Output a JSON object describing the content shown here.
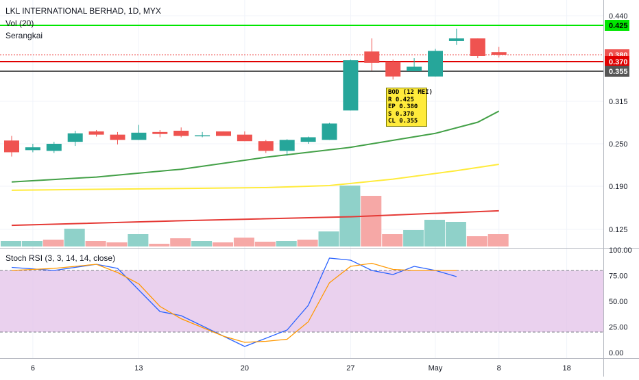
{
  "header": {
    "title": "LKL INTERNATIONAL BERHAD, 1D, MYX",
    "vol_label": "Vol (20)",
    "series_label": "Serangkai",
    "stoch_label": "Stoch RSI (3, 3, 14, 14, close)"
  },
  "annotation": {
    "lines": [
      "BOD (12 MEI)",
      "R 0.425",
      "EP 0.380",
      "S 0.370",
      "CL 0.355"
    ]
  },
  "colors": {
    "up": "#26a69a",
    "down": "#ef5350",
    "up_vol": "#8fd1c9",
    "down_vol": "#f6a8a6",
    "ma_green": "#43a047",
    "ma_yellow": "#ffeb3b",
    "ma_red": "#e53935",
    "k_line": "#2962ff",
    "d_line": "#ff9800",
    "band": "#e1bee7"
  },
  "chart_data": [
    {
      "type": "candlestick",
      "title": "LKL INTERNATIONAL BERHAD, 1D, MYX",
      "y_ticks": [
        "0.440",
        "0.315",
        "0.250",
        "0.190",
        "0.125"
      ],
      "x_ticks": [
        "6",
        "13",
        "20",
        "27",
        "May",
        "8",
        "18"
      ],
      "candles": [
        {
          "o": 0.255,
          "h": 0.262,
          "l": 0.232,
          "c": 0.238
        },
        {
          "o": 0.241,
          "h": 0.25,
          "l": 0.238,
          "c": 0.245
        },
        {
          "o": 0.24,
          "h": 0.253,
          "l": 0.237,
          "c": 0.25
        },
        {
          "o": 0.253,
          "h": 0.27,
          "l": 0.247,
          "c": 0.266
        },
        {
          "o": 0.269,
          "h": 0.271,
          "l": 0.261,
          "c": 0.264
        },
        {
          "o": 0.264,
          "h": 0.268,
          "l": 0.249,
          "c": 0.256
        },
        {
          "o": 0.256,
          "h": 0.279,
          "l": 0.256,
          "c": 0.267
        },
        {
          "o": 0.268,
          "h": 0.271,
          "l": 0.26,
          "c": 0.265
        },
        {
          "o": 0.27,
          "h": 0.275,
          "l": 0.26,
          "c": 0.262
        },
        {
          "o": 0.263,
          "h": 0.268,
          "l": 0.26,
          "c": 0.263
        },
        {
          "o": 0.269,
          "h": 0.269,
          "l": 0.262,
          "c": 0.262
        },
        {
          "o": 0.264,
          "h": 0.269,
          "l": 0.254,
          "c": 0.254
        },
        {
          "o": 0.254,
          "h": 0.256,
          "l": 0.237,
          "c": 0.24
        },
        {
          "o": 0.24,
          "h": 0.257,
          "l": 0.233,
          "c": 0.256
        },
        {
          "o": 0.253,
          "h": 0.261,
          "l": 0.25,
          "c": 0.26
        },
        {
          "o": 0.256,
          "h": 0.282,
          "l": 0.256,
          "c": 0.281
        },
        {
          "o": 0.301,
          "h": 0.373,
          "l": 0.301,
          "c": 0.372
        },
        {
          "o": 0.385,
          "h": 0.405,
          "l": 0.356,
          "c": 0.368
        },
        {
          "o": 0.37,
          "h": 0.373,
          "l": 0.344,
          "c": 0.348
        },
        {
          "o": 0.355,
          "h": 0.375,
          "l": 0.355,
          "c": 0.362
        },
        {
          "o": 0.348,
          "h": 0.389,
          "l": 0.348,
          "c": 0.386
        },
        {
          "o": 0.401,
          "h": 0.42,
          "l": 0.395,
          "c": 0.405
        },
        {
          "o": 0.405,
          "h": 0.405,
          "l": 0.375,
          "c": 0.378
        },
        {
          "o": 0.384,
          "h": 0.392,
          "l": 0.376,
          "c": 0.38
        }
      ],
      "volume": [
        {
          "v": 0.8,
          "dir": "up"
        },
        {
          "v": 0.8,
          "dir": "up"
        },
        {
          "v": 1.0,
          "dir": "down"
        },
        {
          "v": 2.6,
          "dir": "up"
        },
        {
          "v": 0.8,
          "dir": "down"
        },
        {
          "v": 0.6,
          "dir": "down"
        },
        {
          "v": 1.8,
          "dir": "up"
        },
        {
          "v": 0.4,
          "dir": "down"
        },
        {
          "v": 1.2,
          "dir": "down"
        },
        {
          "v": 0.8,
          "dir": "up"
        },
        {
          "v": 0.6,
          "dir": "down"
        },
        {
          "v": 1.3,
          "dir": "down"
        },
        {
          "v": 0.7,
          "dir": "down"
        },
        {
          "v": 0.8,
          "dir": "up"
        },
        {
          "v": 1.0,
          "dir": "down"
        },
        {
          "v": 2.2,
          "dir": "up"
        },
        {
          "v": 8.9,
          "dir": "up"
        },
        {
          "v": 7.4,
          "dir": "down"
        },
        {
          "v": 1.8,
          "dir": "down"
        },
        {
          "v": 2.4,
          "dir": "up"
        },
        {
          "v": 3.9,
          "dir": "up"
        },
        {
          "v": 3.6,
          "dir": "up"
        },
        {
          "v": 1.5,
          "dir": "down"
        },
        {
          "v": 1.8,
          "dir": "down"
        }
      ],
      "moving_averages": [
        {
          "color_key": "ma_green",
          "points": [
            [
              0,
              0.196
            ],
            [
              4,
              0.203
            ],
            [
              8,
              0.214
            ],
            [
              12,
              0.231
            ],
            [
              16,
              0.245
            ],
            [
              20,
              0.266
            ],
            [
              22,
              0.283
            ],
            [
              23,
              0.3
            ]
          ]
        },
        {
          "color_key": "ma_yellow",
          "points": [
            [
              0,
              0.184
            ],
            [
              6,
              0.186
            ],
            [
              12,
              0.188
            ],
            [
              15,
              0.191
            ],
            [
              18,
              0.2
            ],
            [
              21,
              0.212
            ],
            [
              23,
              0.221
            ]
          ]
        },
        {
          "color_key": "ma_red",
          "points": [
            [
              0,
              0.131
            ],
            [
              8,
              0.138
            ],
            [
              16,
              0.144
            ],
            [
              23,
              0.153
            ]
          ]
        }
      ],
      "horizontal_levels": [
        {
          "value": 0.425,
          "label": "0.425",
          "color": "#00e600",
          "style": "solid",
          "label_bg": "#00e600",
          "label_color": "#000000"
        },
        {
          "value": 0.38,
          "label": "0.380",
          "color": "#ef5350",
          "style": "dotted",
          "label_bg": "#ef5350",
          "label_color": "#ffffff"
        },
        {
          "value": 0.37,
          "label": "0.370",
          "color": "#e00000",
          "style": "solid",
          "label_bg": "#e00000",
          "label_color": "#ffffff"
        },
        {
          "value": 0.355,
          "label": "0.355",
          "color": "#555555",
          "style": "solid",
          "label_bg": "#555555",
          "label_color": "#ffffff"
        }
      ]
    },
    {
      "type": "line",
      "title": "Stoch RSI (3, 3, 14, 14, close)",
      "y_ticks": [
        "100.00",
        "75.00",
        "50.00",
        "25.00",
        "0.00"
      ],
      "ylim": [
        0,
        100
      ],
      "band": [
        20,
        80
      ],
      "series": [
        {
          "color_key": "k_line",
          "points": [
            [
              0,
              83
            ],
            [
              2,
              80
            ],
            [
              4,
              86
            ],
            [
              5,
              82
            ],
            [
              7,
              40
            ],
            [
              8,
              36
            ],
            [
              10,
              16
            ],
            [
              11,
              6
            ],
            [
              13,
              22
            ],
            [
              14,
              46
            ],
            [
              15,
              92
            ],
            [
              16,
              90
            ],
            [
              17,
              80
            ],
            [
              18,
              76
            ],
            [
              19,
              84
            ],
            [
              20,
              80
            ],
            [
              21,
              74
            ]
          ]
        },
        {
          "color_key": "d_line",
          "points": [
            [
              0,
              80
            ],
            [
              2,
              82
            ],
            [
              4,
              86
            ],
            [
              5,
              78
            ],
            [
              6,
              67
            ],
            [
              7,
              45
            ],
            [
              8,
              33
            ],
            [
              10,
              16
            ],
            [
              11,
              10
            ],
            [
              12,
              11
            ],
            [
              13,
              13
            ],
            [
              14,
              30
            ],
            [
              15,
              68
            ],
            [
              16,
              84
            ],
            [
              17,
              87
            ],
            [
              18,
              81
            ],
            [
              19,
              80
            ],
            [
              21,
              80
            ]
          ]
        }
      ]
    }
  ]
}
